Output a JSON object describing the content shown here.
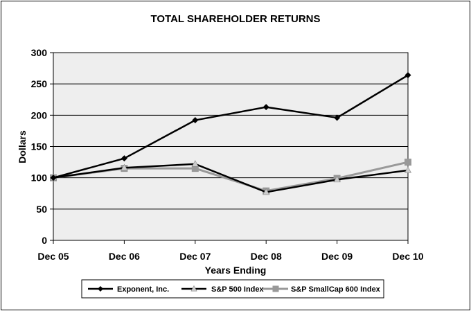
{
  "chart_data": {
    "type": "line",
    "title": "TOTAL SHAREHOLDER RETURNS",
    "xlabel": "Years Ending",
    "ylabel": "Dollars",
    "categories": [
      "Dec 05",
      "Dec 06",
      "Dec 07",
      "Dec 08",
      "Dec 09",
      "Dec 10"
    ],
    "ylim": [
      0,
      300
    ],
    "yticks": [
      0,
      50,
      100,
      150,
      200,
      250,
      300
    ],
    "grid": true,
    "legend_position": "bottom",
    "series": [
      {
        "name": "Exponent, Inc.",
        "values": [
          100,
          131,
          192,
          213,
          196,
          264
        ],
        "color": "#000000",
        "marker": "diamond"
      },
      {
        "name": "S&P 500 Index",
        "values": [
          100,
          116,
          122,
          77,
          97,
          112
        ],
        "color": "#000000",
        "marker": "triangle"
      },
      {
        "name": "S&P SmallCap 600 Index",
        "values": [
          100,
          115,
          115,
          79,
          99,
          125
        ],
        "color": "#999999",
        "marker": "square"
      }
    ]
  }
}
